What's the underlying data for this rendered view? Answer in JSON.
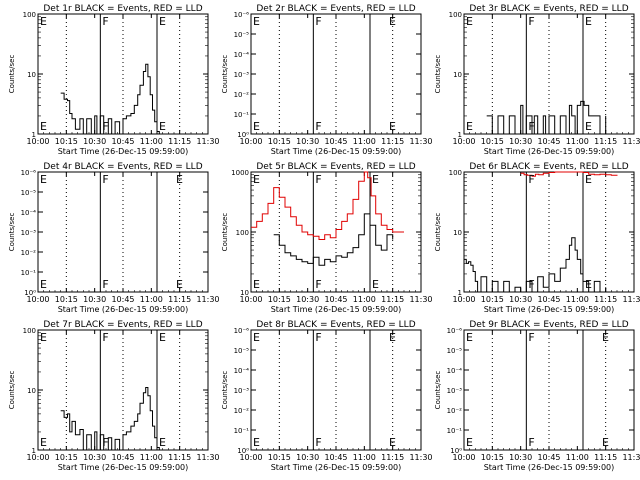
{
  "chart_data": [
    {
      "type": "line",
      "title": "Det 1r BLACK = Events, RED = LLD",
      "xlabel": "Start Time (26-Dec-15 09:59:00)",
      "ylabel": "Counts/sec",
      "x_ticks": [
        "10:00",
        "10:15",
        "10:30",
        "10:45",
        "11:00",
        "11:15",
        "11:30"
      ],
      "y_ticks": [
        "1",
        "10",
        "100"
      ],
      "ylim": [
        1,
        100
      ],
      "yscale": "log",
      "markers": [
        {
          "label": "E",
          "x": 10.0
        },
        {
          "label": "F",
          "x": 10.55
        },
        {
          "label": "E",
          "x": 11.05
        }
      ],
      "vlines_dotted": [
        10.25,
        10.75,
        11.25
      ],
      "vlines_solid": [
        10.55,
        11.05
      ],
      "series": [
        {
          "color": "#000000",
          "x": [
            10.2,
            10.23,
            10.26,
            10.28,
            10.3,
            10.33,
            10.37,
            10.4,
            10.43,
            10.47,
            10.5,
            10.52,
            10.55,
            10.58,
            10.62,
            10.65,
            10.68,
            10.72,
            10.75,
            10.78,
            10.82,
            10.85,
            10.88,
            10.9,
            10.93,
            10.95,
            10.97,
            10.99,
            11.01,
            11.03,
            11.05,
            11.07
          ],
          "y": [
            4.8,
            3.8,
            3.6,
            2.2,
            1.8,
            1.2,
            1.8,
            1.0,
            1.8,
            1.0,
            2.0,
            1.0,
            2.0,
            1.0,
            1.8,
            1.0,
            1.6,
            1.0,
            1.8,
            2.0,
            2.2,
            3.0,
            4.5,
            6.5,
            11.0,
            14.5,
            9.0,
            4.5,
            2.5,
            1.6,
            1.1,
            1.0
          ]
        }
      ]
    },
    {
      "type": "line",
      "title": "Det 2r BLACK = Events, RED = LLD",
      "xlabel": "Start Time (26-Dec-15 09:59:00)",
      "ylabel": "Counts/sec",
      "x_ticks": [
        "10:00",
        "10:15",
        "10:30",
        "10:45",
        "11:00",
        "11:15",
        "11:30"
      ],
      "y_ticks": [
        "10⁰",
        "10⁻¹",
        "10⁻²",
        "10⁻³",
        "10⁻⁴",
        "10⁻⁵",
        "10⁻⁶"
      ],
      "yscale": "log",
      "markers": [
        {
          "label": "E",
          "x": 10.0
        },
        {
          "label": "F",
          "x": 10.55
        },
        {
          "label": "E",
          "x": 11.2
        }
      ],
      "vlines_dotted": [
        10.25,
        10.75,
        11.25
      ],
      "vlines_solid": [
        10.55,
        11.05
      ],
      "series": []
    },
    {
      "type": "line",
      "title": "Det 3r BLACK = Events, RED = LLD",
      "xlabel": "Start Time (26-Dec-15 09:59:00)",
      "ylabel": "Counts/sec",
      "x_ticks": [
        "10:00",
        "10:15",
        "10:30",
        "10:45",
        "11:00",
        "11:15",
        "11:30"
      ],
      "y_ticks": [
        "1",
        "10",
        "100"
      ],
      "ylim": [
        1,
        100
      ],
      "yscale": "log",
      "markers": [
        {
          "label": "E",
          "x": 10.0
        },
        {
          "label": "F",
          "x": 10.55
        },
        {
          "label": "E",
          "x": 11.05
        }
      ],
      "vlines_dotted": [
        10.25,
        10.75,
        11.25
      ],
      "vlines_solid": [
        10.55,
        11.05
      ],
      "series": [
        {
          "color": "#000000",
          "x": [
            10.2,
            10.25,
            10.3,
            10.35,
            10.4,
            10.45,
            10.5,
            10.52,
            10.55,
            10.6,
            10.62,
            10.65,
            10.7,
            10.72,
            10.75,
            10.8,
            10.85,
            10.9,
            10.93,
            10.95,
            10.98,
            11.0,
            11.03,
            11.06,
            11.1,
            11.15,
            11.2,
            11.25
          ],
          "y": [
            2.0,
            1.0,
            2.0,
            1.0,
            2.0,
            1.0,
            3.0,
            1.0,
            2.0,
            1.0,
            2.0,
            1.0,
            2.0,
            1.0,
            2.0,
            1.0,
            2.0,
            1.0,
            3.0,
            2.0,
            1.0,
            3.0,
            3.5,
            3.0,
            2.0,
            2.0,
            1.0,
            2.0
          ]
        }
      ]
    },
    {
      "type": "line",
      "title": "Det 4r BLACK = Events, RED = LLD",
      "xlabel": "Start Time (26-Dec-15 09:59:00)",
      "ylabel": "Counts/sec",
      "x_ticks": [
        "10:00",
        "10:15",
        "10:30",
        "10:45",
        "11:00",
        "11:15",
        "11:30"
      ],
      "y_ticks": [
        "10⁰",
        "10⁻¹",
        "10⁻²",
        "10⁻³",
        "10⁻⁴",
        "10⁻⁵",
        "10⁻⁶"
      ],
      "yscale": "log",
      "markers": [
        {
          "label": "E",
          "x": 10.0
        },
        {
          "label": "F",
          "x": 10.55
        },
        {
          "label": "E",
          "x": 11.2
        }
      ],
      "vlines_dotted": [
        10.25,
        10.75,
        11.25
      ],
      "vlines_solid": [
        10.55,
        11.05
      ],
      "series": []
    },
    {
      "type": "line",
      "title": "Det 5r BLACK = Events, RED = LLD",
      "xlabel": "Start Time (26-Dec-15 09:59:00)",
      "ylabel": "Counts/sec",
      "x_ticks": [
        "10:00",
        "10:15",
        "10:30",
        "10:45",
        "11:00",
        "11:15",
        "11:30"
      ],
      "y_ticks": [
        "10",
        "100",
        "1000"
      ],
      "ylim": [
        10,
        1000
      ],
      "yscale": "log",
      "markers": [
        {
          "label": "E",
          "x": 10.0
        },
        {
          "label": "F",
          "x": 10.55
        },
        {
          "label": "E",
          "x": 11.05
        }
      ],
      "vlines_dotted": [
        10.25,
        10.75,
        11.25
      ],
      "vlines_solid": [
        10.55,
        11.05
      ],
      "series": [
        {
          "name": "LLD",
          "color": "#e00000",
          "x": [
            10.0,
            10.05,
            10.1,
            10.15,
            10.2,
            10.25,
            10.3,
            10.35,
            10.4,
            10.45,
            10.5,
            10.55,
            10.6,
            10.65,
            10.7,
            10.75,
            10.8,
            10.85,
            10.9,
            10.95,
            11.0,
            11.03,
            11.06,
            11.1,
            11.15,
            11.2,
            11.25,
            11.3,
            11.35
          ],
          "y": [
            120,
            150,
            200,
            300,
            550,
            380,
            260,
            180,
            130,
            100,
            90,
            85,
            75,
            90,
            80,
            110,
            150,
            200,
            350,
            700,
            1000,
            800,
            400,
            200,
            130,
            110,
            100,
            100,
            100
          ]
        },
        {
          "name": "Events",
          "color": "#000000",
          "x": [
            10.2,
            10.25,
            10.3,
            10.35,
            10.4,
            10.45,
            10.5,
            10.55,
            10.6,
            10.65,
            10.7,
            10.75,
            10.8,
            10.85,
            10.9,
            10.95,
            11.0,
            11.05,
            11.1,
            11.15,
            11.2,
            11.25
          ],
          "y": [
            90,
            60,
            45,
            40,
            35,
            32,
            30,
            38,
            28,
            35,
            32,
            40,
            38,
            45,
            55,
            90,
            200,
            130,
            60,
            50,
            90,
            75
          ]
        }
      ]
    },
    {
      "type": "line",
      "title": "Det 6r BLACK = Events, RED = LLD",
      "xlabel": "Start Time (26-Dec-15 09:59:00)",
      "ylabel": "Counts/sec",
      "x_ticks": [
        "10:00",
        "10:15",
        "10:30",
        "10:45",
        "11:00",
        "11:15",
        "11:30"
      ],
      "y_ticks": [
        "1",
        "10",
        "100"
      ],
      "ylim": [
        1,
        100
      ],
      "yscale": "log",
      "markers": [
        {
          "label": "F",
          "x": 10.55
        },
        {
          "label": "E",
          "x": 11.05
        }
      ],
      "vlines_dotted": [
        10.25,
        10.75,
        11.25
      ],
      "vlines_solid": [
        10.55,
        11.05
      ],
      "series": [
        {
          "name": "LLD",
          "color": "#e00000",
          "x": [
            10.5,
            10.53,
            10.56,
            10.6,
            10.63,
            10.66,
            10.7,
            10.75,
            10.8,
            10.85,
            10.9,
            10.95,
            11.0,
            11.05,
            11.1,
            11.15,
            11.2,
            11.25,
            11.3,
            11.35
          ],
          "y": [
            95,
            90,
            88,
            85,
            92,
            90,
            95,
            98,
            100,
            100,
            100,
            100,
            100,
            98,
            92,
            90,
            92,
            90,
            88,
            90
          ]
        },
        {
          "name": "Events",
          "color": "#000000",
          "x": [
            10.0,
            10.02,
            10.04,
            10.06,
            10.08,
            10.1,
            10.12,
            10.15,
            10.2,
            10.25,
            10.3,
            10.35,
            10.4,
            10.45,
            10.5,
            10.55,
            10.6,
            10.65,
            10.7,
            10.75,
            10.8,
            10.85,
            10.9,
            10.93,
            10.95,
            10.98,
            11.0,
            11.03,
            11.05,
            11.1,
            11.15,
            11.2,
            11.25
          ],
          "y": [
            3.5,
            3.0,
            3.2,
            2.8,
            2.2,
            1.5,
            1.0,
            1.8,
            1.0,
            1.5,
            1.0,
            1.5,
            1.0,
            1.2,
            1.0,
            1.5,
            1.0,
            1.8,
            1.2,
            2.0,
            1.5,
            2.5,
            3.5,
            6.0,
            8.0,
            5.0,
            3.5,
            2.0,
            1.5,
            1.0,
            1.5,
            1.0,
            1.2
          ]
        }
      ]
    },
    {
      "type": "line",
      "title": "Det 7r BLACK = Events, RED = LLD",
      "xlabel": "Start Time (26-Dec-15 09:59:00)",
      "ylabel": "Counts/sec",
      "x_ticks": [
        "10:00",
        "10:15",
        "10:30",
        "10:45",
        "11:00",
        "11:15",
        "11:30"
      ],
      "y_ticks": [
        "1",
        "10",
        "100"
      ],
      "ylim": [
        1,
        100
      ],
      "yscale": "log",
      "markers": [
        {
          "label": "E",
          "x": 10.0
        },
        {
          "label": "F",
          "x": 10.55
        },
        {
          "label": "E",
          "x": 11.05
        }
      ],
      "vlines_dotted": [
        10.25,
        10.75,
        11.25
      ],
      "vlines_solid": [
        10.55,
        11.05
      ],
      "series": [
        {
          "color": "#000000",
          "x": [
            10.2,
            10.23,
            10.26,
            10.28,
            10.3,
            10.33,
            10.37,
            10.4,
            10.43,
            10.47,
            10.5,
            10.52,
            10.55,
            10.58,
            10.62,
            10.65,
            10.68,
            10.72,
            10.75,
            10.78,
            10.82,
            10.85,
            10.88,
            10.9,
            10.93,
            10.95,
            10.97,
            10.99,
            11.01,
            11.03,
            11.05,
            11.07
          ],
          "y": [
            4.5,
            3.5,
            4.0,
            2.0,
            3.0,
            1.8,
            2.2,
            1.0,
            1.8,
            1.0,
            2.0,
            1.0,
            1.8,
            1.0,
            1.6,
            1.0,
            1.5,
            1.0,
            1.8,
            2.0,
            2.5,
            3.0,
            4.0,
            6.0,
            9.0,
            11.0,
            8.0,
            4.5,
            2.5,
            1.6,
            1.1,
            1.0
          ]
        }
      ]
    },
    {
      "type": "line",
      "title": "Det 8r BLACK = Events, RED = LLD",
      "xlabel": "Start Time (26-Dec-15 09:59:00)",
      "ylabel": "Counts/sec",
      "x_ticks": [
        "10:00",
        "10:15",
        "10:30",
        "10:45",
        "11:00",
        "11:15",
        "11:30"
      ],
      "y_ticks": [
        "10⁰",
        "10⁻¹",
        "10⁻²",
        "10⁻³",
        "10⁻⁴",
        "10⁻⁵",
        "10⁻⁶"
      ],
      "yscale": "log",
      "markers": [
        {
          "label": "E",
          "x": 10.0
        },
        {
          "label": "F",
          "x": 10.55
        },
        {
          "label": "E",
          "x": 11.2
        }
      ],
      "vlines_dotted": [
        10.25,
        10.75,
        11.25
      ],
      "vlines_solid": [
        10.55,
        11.05
      ],
      "series": []
    },
    {
      "type": "line",
      "title": "Det 9r BLACK = Events, RED = LLD",
      "xlabel": "Start Time (26-Dec-15 09:59:00)",
      "ylabel": "Counts/sec",
      "x_ticks": [
        "10:00",
        "10:15",
        "10:30",
        "10:45",
        "11:00",
        "11:15",
        "11:30"
      ],
      "y_ticks": [
        "10⁰",
        "10⁻¹",
        "10⁻²",
        "10⁻³",
        "10⁻⁴",
        "10⁻⁵",
        "10⁻⁶"
      ],
      "yscale": "log",
      "markers": [
        {
          "label": "E",
          "x": 10.0
        },
        {
          "label": "F",
          "x": 10.55
        },
        {
          "label": "E",
          "x": 11.2
        }
      ],
      "vlines_dotted": [
        10.25,
        10.75,
        11.25
      ],
      "vlines_solid": [
        10.55,
        11.05
      ],
      "series": []
    }
  ]
}
